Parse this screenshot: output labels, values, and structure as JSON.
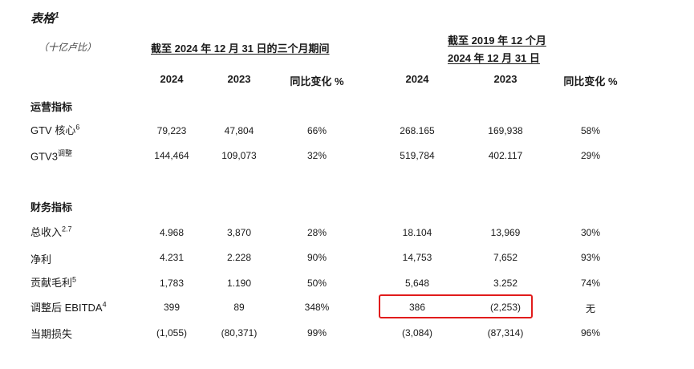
{
  "title": "表格",
  "title_note": "1",
  "unit": "（十亿卢比）",
  "period_headers": {
    "quarter": "截至 2024 年 12 月 31 日的三个月期间",
    "range_line1": "截至 2019 年 12 个月",
    "range_line2": "2024 年 12 月 31 日"
  },
  "columns": [
    "2024",
    "2023",
    "同比变化 %",
    "2024",
    "2023",
    "同比变化 %"
  ],
  "sections": [
    {
      "name": "运营指标",
      "rows": [
        {
          "label": "GTV 核心",
          "note": "6",
          "values": [
            "79,223",
            "47,804",
            "66%",
            "268.165",
            "169,938",
            "58%"
          ]
        },
        {
          "label": "GTV3",
          "note": "调整",
          "values": [
            "144,464",
            "109,073",
            "32%",
            "519,784",
            "402.117",
            "29%"
          ]
        }
      ]
    },
    {
      "name": "财务指标",
      "rows": [
        {
          "label": "总收入",
          "note": "2.7",
          "values": [
            "4.968",
            "3,870",
            "28%",
            "18.104",
            "13,969",
            "30%"
          ]
        },
        {
          "label": "净利",
          "note": "",
          "values": [
            "4.231",
            "2.228",
            "90%",
            "14,753",
            "7,652",
            "93%"
          ]
        },
        {
          "label": "贡献毛利",
          "note": "5",
          "values": [
            "1,783",
            "1.190",
            "50%",
            "5,648",
            "3.252",
            "74%"
          ]
        },
        {
          "label": "调整后 EBITDA",
          "note": "4",
          "values": [
            "399",
            "89",
            "348%",
            "386",
            "(2,253)",
            "无"
          ]
        },
        {
          "label": "当期损失",
          "note": "",
          "values": [
            "(1,055)",
            "(80,371)",
            "99%",
            "(3,084)",
            "(87,314)",
            "96%"
          ]
        }
      ]
    }
  ],
  "highlight_color": "#e11c1c"
}
